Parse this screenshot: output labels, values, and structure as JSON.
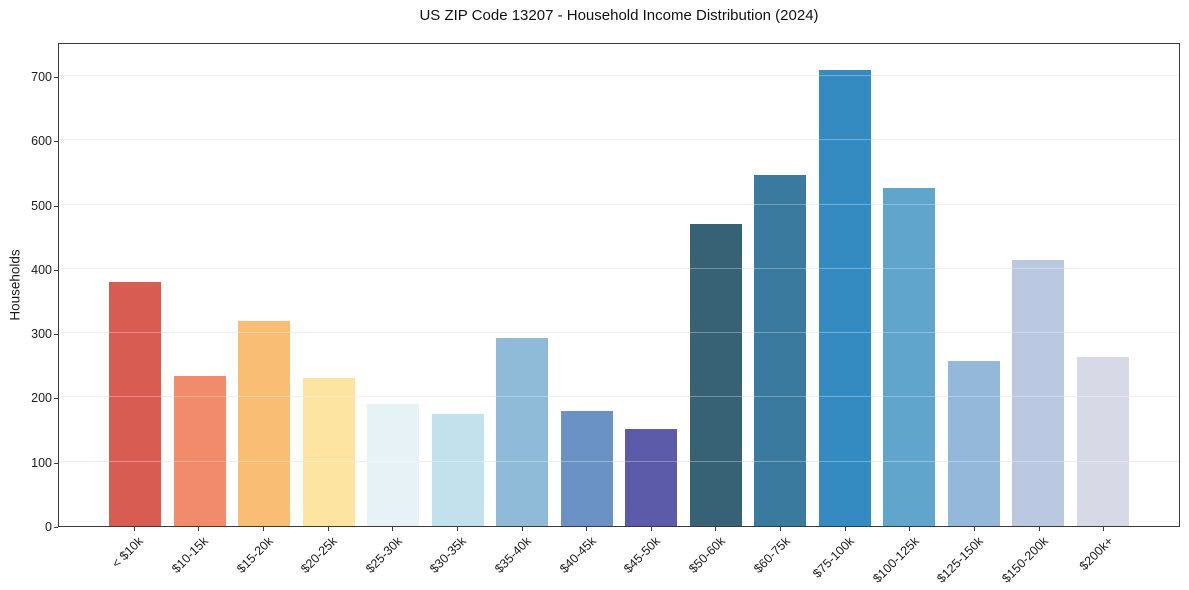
{
  "figure": {
    "title": "US ZIP Code 13207 - Household Income Distribution (2024)",
    "y_axis_title": "Households"
  },
  "chart_data": {
    "type": "bar",
    "title": "US ZIP Code 13207 - Household Income Distribution (2024)",
    "xlabel": "",
    "ylabel": "Households",
    "categories": [
      "< $10k",
      "$10-15k",
      "$15-20k",
      "$20-25k",
      "$25-30k",
      "$30-35k",
      "$35-40k",
      "$40-45k",
      "$45-50k",
      "$50-60k",
      "$60-75k",
      "$75-100k",
      "$100-125k",
      "$125-150k",
      "$150-200k",
      "$200k+"
    ],
    "values": [
      381,
      235,
      321,
      231,
      190,
      175,
      294,
      179,
      151,
      472,
      548,
      713,
      528,
      258,
      415,
      264
    ],
    "bar_colors": [
      "#d95c52",
      "#f28b6b",
      "#f9bd74",
      "#fde5a1",
      "#e7f2f7",
      "#c3e1ed",
      "#8fbad8",
      "#6b92c4",
      "#5b5ba9",
      "#376275",
      "#3a7a9e",
      "#348bc2",
      "#60a5cb",
      "#93b8d9",
      "#bac8e2",
      "#d7d9e7"
    ],
    "yticks": [
      0,
      100,
      200,
      300,
      400,
      500,
      600,
      700
    ],
    "ylim": [
      0,
      753
    ],
    "grid": "horizontal",
    "legend": "none",
    "x_tick_rotation_deg": 45,
    "bar_width_frac": 0.8
  },
  "colors": {
    "background": "#ffffff",
    "spine": "#3a3a3a",
    "gridline": "#e9e9e9",
    "text": "#1a1a1a"
  }
}
